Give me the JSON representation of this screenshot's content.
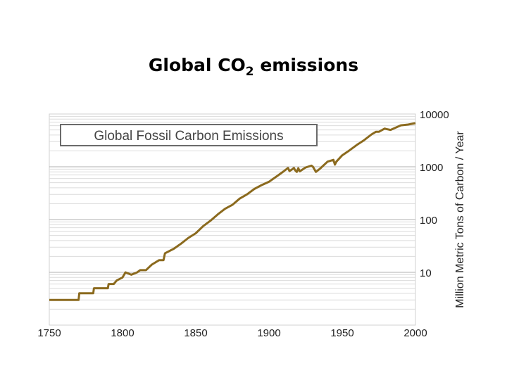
{
  "slide": {
    "title_main": "Global CO",
    "title_sub": "2",
    "title_rest": " emissions"
  },
  "chart_data": {
    "type": "line",
    "title": "Global Fossil Carbon Emissions",
    "xlabel": "",
    "ylabel": "Million Metric Tons of Carbon / Year",
    "y_scale": "log",
    "xlim": [
      1750,
      2000
    ],
    "ylim": [
      1,
      10000
    ],
    "x_ticks": [
      "1750",
      "1800",
      "1850",
      "1900",
      "1950",
      "2000"
    ],
    "y_ticks": [
      "10",
      "100",
      "1000",
      "10000"
    ],
    "grid": "horizontal (log minor)",
    "line_color": "#8b6a1e",
    "series": [
      {
        "x": [
          1750,
          1770,
          1770.5,
          1780,
          1780.5,
          1790,
          1790.5,
          1794,
          1796,
          1800,
          1802,
          1806,
          1810,
          1812,
          1816,
          1820,
          1825,
          1828,
          1829,
          1835,
          1840,
          1845,
          1850,
          1855,
          1860,
          1865,
          1870,
          1875,
          1880,
          1885,
          1890,
          1895,
          1900,
          1905,
          1910,
          1913,
          1914,
          1916,
          1917,
          1918,
          1919,
          1920,
          1921,
          1925,
          1929,
          1930,
          1932,
          1935,
          1940,
          1944,
          1945,
          1946,
          1950,
          1955,
          1960,
          1965,
          1970,
          1973,
          1975,
          1979,
          1980,
          1983,
          1985,
          1990,
          1995,
          2000
        ],
        "y": [
          3,
          3,
          4,
          4,
          5,
          5,
          6,
          6,
          7,
          8,
          10,
          9,
          10,
          11,
          11,
          14,
          17,
          17,
          23,
          28,
          35,
          45,
          55,
          75,
          95,
          125,
          160,
          190,
          250,
          300,
          380,
          450,
          520,
          650,
          820,
          950,
          830,
          900,
          950,
          850,
          800,
          940,
          820,
          970,
          1050,
          1000,
          800,
          930,
          1250,
          1350,
          1100,
          1250,
          1650,
          2050,
          2600,
          3200,
          4100,
          4600,
          4600,
          5300,
          5200,
          5000,
          5300,
          6100,
          6300,
          6700
        ]
      }
    ]
  }
}
